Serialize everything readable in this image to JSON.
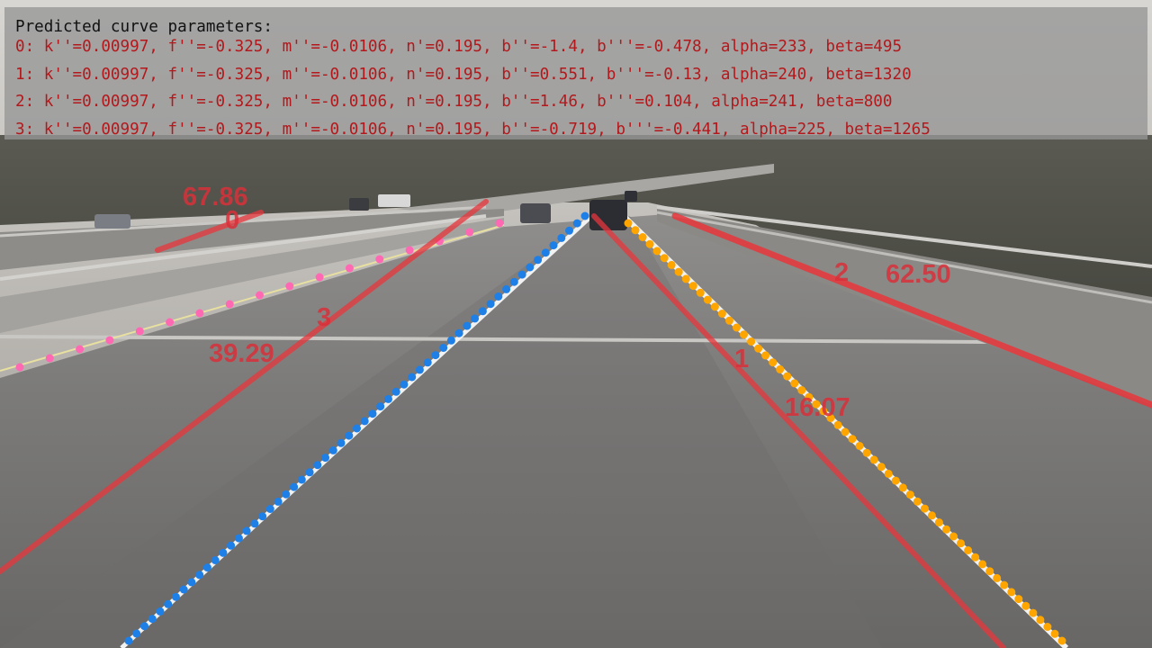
{
  "panel": {
    "title": "Predicted curve parameters:",
    "rows": [
      "0: k''=0.00997, f''=-0.325, m''=-0.0106, n'=0.195, b''=-1.4, b'''=-0.478, alpha=233, beta=495",
      "1: k''=0.00997, f''=-0.325, m''=-0.0106, n'=0.195, b''=0.551, b'''=-0.13, alpha=240, beta=1320",
      "2: k''=0.00997, f''=-0.325, m''=-0.0106, n'=0.195, b''=1.46, b'''=0.104, alpha=241, beta=800",
      "3: k''=0.00997, f''=-0.325, m''=-0.0106, n'=0.195, b''=-0.719, b'''=-0.441, alpha=225, beta=1265"
    ]
  },
  "lane_labels": [
    {
      "id": "0",
      "score": "67.86"
    },
    {
      "id": "1",
      "score": "16.07"
    },
    {
      "id": "2",
      "score": "62.50"
    },
    {
      "id": "3",
      "score": "39.29"
    }
  ],
  "colors": {
    "prediction": "#e8363c",
    "ground_truth_left": "#ff69b4",
    "ground_truth_ego_left": "#1e7fe6",
    "ground_truth_ego_right": "#ffa500"
  }
}
